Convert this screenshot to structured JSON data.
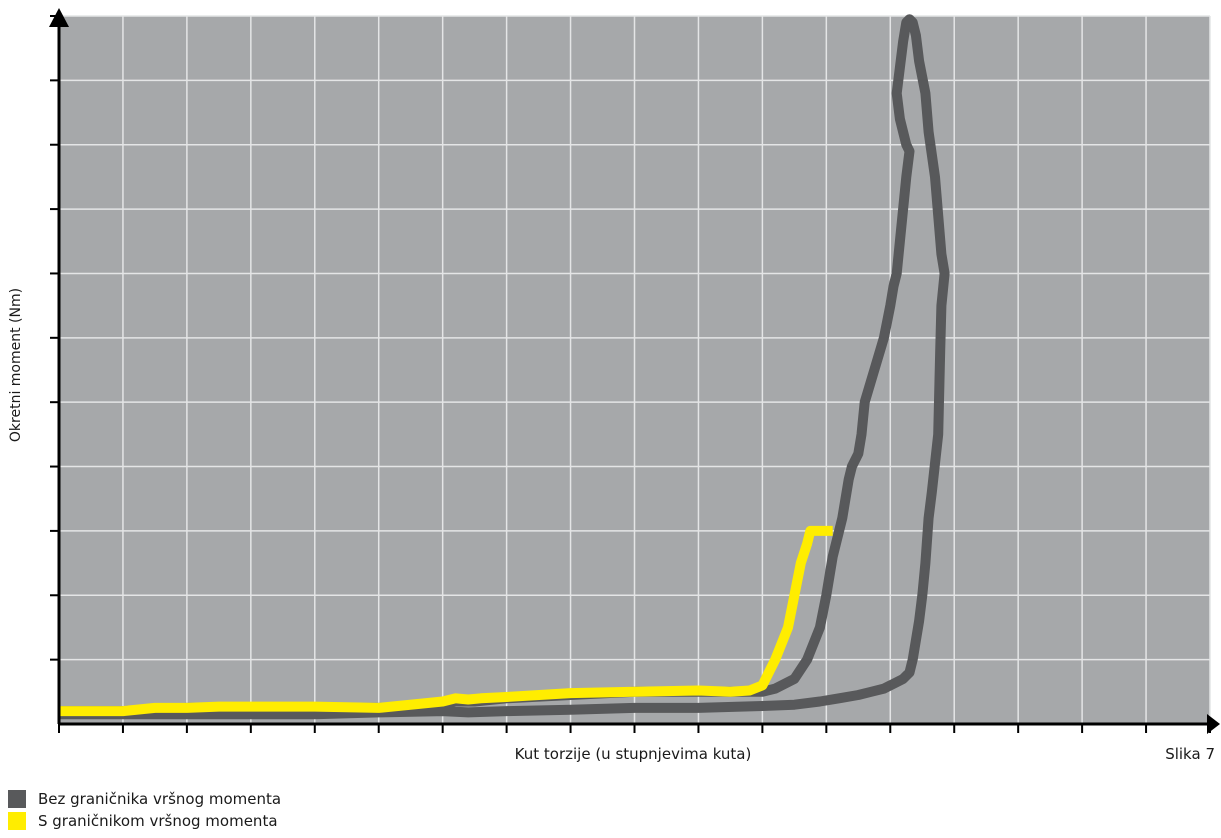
{
  "figure_label": "Slika 7",
  "colors": {
    "plot_background": "#a6a8aa",
    "grid": "#e4e5e6",
    "axis": "#000000",
    "series_without_limiter": "#58595b",
    "series_with_limiter": "#ffed00"
  },
  "legend": [
    {
      "label": "Bez graničnika vršnog momenta",
      "color": "#58595b"
    },
    {
      "label": "S graničnikom vršnog momenta",
      "color": "#ffed00"
    }
  ],
  "chart_data": {
    "type": "line",
    "title": "",
    "xlabel": "Kut torzije (u stupnjevima kuta)",
    "ylabel": "Okretni moment (Nm)",
    "xlim": [
      0,
      18
    ],
    "ylim": [
      0,
      11
    ],
    "x_ticks_labeled": false,
    "y_ticks_labeled": false,
    "grid": true,
    "legend_position": "bottom-left",
    "series": [
      {
        "name": "Bez graničnika vršnog momenta",
        "x": [
          0.0,
          1.0,
          2.0,
          3.0,
          4.0,
          5.0,
          6.0,
          6.2,
          6.5,
          7.0,
          8.0,
          9.0,
          10.0,
          10.6,
          11.0,
          11.2,
          11.5,
          11.7,
          11.9,
          12.0,
          12.05,
          12.1,
          12.2,
          12.25,
          12.3,
          12.35,
          12.4,
          12.5,
          12.55,
          12.6,
          12.75,
          12.9,
          13.0,
          13.05,
          13.1,
          13.15,
          13.2,
          13.25,
          13.3,
          13.25,
          13.2,
          13.15,
          13.1,
          13.15,
          13.2,
          13.25,
          13.3,
          13.35,
          13.4,
          13.45,
          13.55,
          13.6,
          13.7,
          13.75,
          13.8,
          13.85,
          13.8,
          13.78,
          13.75,
          13.65,
          13.6,
          13.55,
          13.5,
          13.45,
          13.4,
          13.35,
          13.3,
          13.2,
          13.1,
          13.0,
          12.9,
          12.7,
          12.5,
          12.2,
          11.9,
          11.5,
          11.0,
          10.0,
          9.0,
          8.0,
          7.0,
          6.4,
          6.0,
          5.0,
          4.0,
          3.0,
          2.0,
          1.0,
          0.0
        ],
        "y": [
          0.2,
          0.2,
          0.25,
          0.25,
          0.25,
          0.25,
          0.3,
          0.35,
          0.35,
          0.4,
          0.45,
          0.5,
          0.5,
          0.5,
          0.5,
          0.55,
          0.7,
          1.0,
          1.5,
          2.0,
          2.3,
          2.6,
          3.0,
          3.2,
          3.5,
          3.8,
          4.0,
          4.2,
          4.5,
          5.0,
          5.5,
          6.0,
          6.5,
          6.8,
          7.0,
          7.5,
          8.0,
          8.5,
          8.9,
          9.0,
          9.2,
          9.4,
          9.8,
          10.2,
          10.6,
          10.9,
          10.95,
          10.9,
          10.7,
          10.3,
          9.8,
          9.2,
          8.5,
          7.9,
          7.3,
          7.0,
          6.5,
          5.8,
          4.5,
          3.6,
          3.2,
          2.5,
          2.0,
          1.6,
          1.3,
          1.0,
          0.8,
          0.7,
          0.65,
          0.6,
          0.55,
          0.5,
          0.45,
          0.4,
          0.35,
          0.3,
          0.28,
          0.25,
          0.25,
          0.22,
          0.2,
          0.18,
          0.2,
          0.18,
          0.15,
          0.15,
          0.15,
          0.15,
          0.15
        ]
      },
      {
        "name": "S graničnikom vršnog momenta",
        "x": [
          0.0,
          1.0,
          1.5,
          2.0,
          2.5,
          3.0,
          4.0,
          5.0,
          6.0,
          6.2,
          6.4,
          6.6,
          7.0,
          8.0,
          9.0,
          10.0,
          10.5,
          10.8,
          11.0,
          11.2,
          11.4,
          11.5,
          11.6,
          11.7,
          11.75,
          11.8,
          11.9,
          12.1
        ],
        "y": [
          0.2,
          0.2,
          0.25,
          0.25,
          0.27,
          0.27,
          0.27,
          0.25,
          0.35,
          0.4,
          0.38,
          0.4,
          0.42,
          0.48,
          0.5,
          0.52,
          0.5,
          0.52,
          0.6,
          1.0,
          1.5,
          2.0,
          2.5,
          2.8,
          3.0,
          3.0,
          3.0,
          3.0
        ]
      }
    ]
  }
}
